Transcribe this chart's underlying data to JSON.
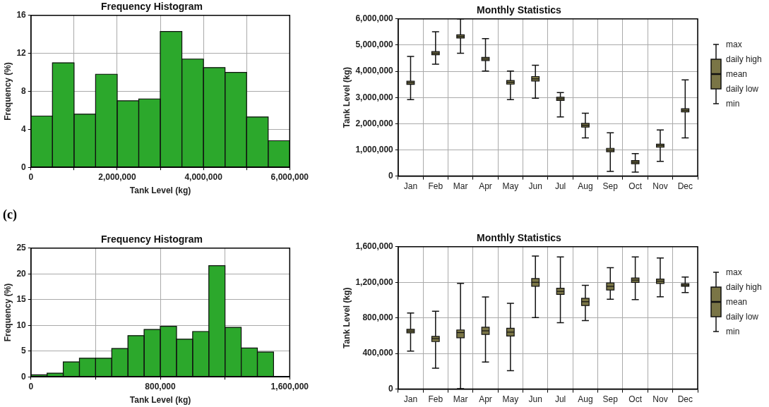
{
  "chart_data": [
    {
      "type": "histogram",
      "title": "Frequency Histogram",
      "xlabel": "Tank Level (kg)",
      "ylabel": "Frequency (%)",
      "color": "#2ca82c",
      "bins": [
        0,
        500000,
        1000000,
        1500000,
        2000000,
        2500000,
        3000000,
        3500000,
        4000000,
        4500000,
        5000000,
        5500000,
        6000000
      ],
      "values": [
        5.4,
        11.0,
        5.6,
        9.8,
        7.0,
        7.2,
        14.3,
        11.4,
        10.5,
        10.0,
        5.3,
        2.8
      ],
      "xlim": [
        0,
        6000000
      ],
      "xticks": [
        0,
        {
          "value": 1000000,
          "label": null
        },
        {
          "value": 2000000,
          "label": "2,000,000"
        },
        {
          "value": 3000000,
          "label": null
        },
        {
          "value": 4000000,
          "label": "4,000,000"
        },
        {
          "value": 5000000,
          "label": null
        },
        {
          "value": 6000000,
          "label": "6,000,000"
        }
      ],
      "ylim": [
        0,
        16
      ],
      "yticks": [
        0,
        4,
        8,
        12,
        16
      ],
      "grid": true
    },
    {
      "type": "box",
      "title": "Monthly Statistics",
      "ylabel": "Tank Level (kg)",
      "color": "#7a7546",
      "categories": [
        "Jan",
        "Feb",
        "Mar",
        "Apr",
        "May",
        "Jun",
        "Jul",
        "Aug",
        "Sep",
        "Oct",
        "Nov",
        "Dec"
      ],
      "boxes": [
        {
          "low": 2920000,
          "q1": 3500000,
          "median": 3560000,
          "q3": 3620000,
          "high": 4570000
        },
        {
          "low": 4270000,
          "q1": 4630000,
          "median": 4690000,
          "q3": 4750000,
          "high": 5510000
        },
        {
          "low": 4690000,
          "q1": 5270000,
          "median": 5330000,
          "q3": 5390000,
          "high": 6000000
        },
        {
          "low": 4010000,
          "q1": 4410000,
          "median": 4470000,
          "q3": 4530000,
          "high": 5250000
        },
        {
          "low": 2920000,
          "q1": 3510000,
          "median": 3580000,
          "q3": 3650000,
          "high": 4010000
        },
        {
          "low": 2970000,
          "q1": 3630000,
          "median": 3710000,
          "q3": 3800000,
          "high": 4230000
        },
        {
          "low": 2260000,
          "q1": 2890000,
          "median": 2950000,
          "q3": 3010000,
          "high": 3190000
        },
        {
          "low": 1460000,
          "q1": 1870000,
          "median": 1940000,
          "q3": 2010000,
          "high": 2400000
        },
        {
          "low": 180000,
          "q1": 930000,
          "median": 990000,
          "q3": 1060000,
          "high": 1650000
        },
        {
          "low": 150000,
          "q1": 470000,
          "median": 530000,
          "q3": 590000,
          "high": 860000
        },
        {
          "low": 560000,
          "q1": 1100000,
          "median": 1160000,
          "q3": 1220000,
          "high": 1760000
        },
        {
          "low": 1460000,
          "q1": 2450000,
          "median": 2510000,
          "q3": 2570000,
          "high": 3670000
        }
      ],
      "ylim": [
        0,
        6000000
      ],
      "yticks": [
        0,
        {
          "value": 1000000,
          "label": "1,000,000"
        },
        {
          "value": 2000000,
          "label": "2,000,000"
        },
        {
          "value": 3000000,
          "label": "3,000,000"
        },
        {
          "value": 4000000,
          "label": "4,000,000"
        },
        {
          "value": 5000000,
          "label": "5,000,000"
        },
        {
          "value": 6000000,
          "label": "6,000,000"
        }
      ],
      "grid": true,
      "annotations": [
        "max",
        "daily high",
        "mean",
        "daily low",
        "min"
      ]
    },
    {
      "type": "histogram",
      "title": "Frequency Histogram",
      "xlabel": "Tank Level (kg)",
      "ylabel": "Frequency (%)",
      "color": "#2ca82c",
      "bins": [
        0,
        100000,
        200000,
        300000,
        400000,
        500000,
        600000,
        700000,
        800000,
        900000,
        1000000,
        1100000,
        1200000,
        1300000,
        1400000,
        1500000
      ],
      "values": [
        0.4,
        0.7,
        2.9,
        3.6,
        3.6,
        5.5,
        8.0,
        9.2,
        9.8,
        7.3,
        8.8,
        21.6,
        9.6,
        5.6,
        4.8
      ],
      "xlim": [
        0,
        1600000
      ],
      "xticks": [
        0,
        {
          "value": 400000,
          "label": null
        },
        {
          "value": 800000,
          "label": "800,000"
        },
        {
          "value": 1200000,
          "label": null
        },
        {
          "value": 1600000,
          "label": "1,600,000"
        }
      ],
      "ylim": [
        0,
        25
      ],
      "yticks": [
        0,
        5,
        10,
        15,
        20,
        25
      ],
      "grid": true,
      "annotations": [
        "(c)"
      ]
    },
    {
      "type": "box",
      "title": "Monthly Statistics",
      "ylabel": "Tank Level (kg)",
      "color": "#7a7546",
      "categories": [
        "Jan",
        "Feb",
        "Mar",
        "Apr",
        "May",
        "Jun",
        "Jul",
        "Aug",
        "Sep",
        "Oct",
        "Nov",
        "Dec"
      ],
      "boxes": [
        {
          "low": 426000,
          "q1": 632000,
          "median": 652000,
          "q3": 672000,
          "high": 856000
        },
        {
          "low": 234000,
          "q1": 534000,
          "median": 567000,
          "q3": 592000,
          "high": 874000
        },
        {
          "low": 5000,
          "q1": 577000,
          "median": 635000,
          "q3": 665000,
          "high": 1189000
        },
        {
          "low": 305000,
          "q1": 615000,
          "median": 655000,
          "q3": 695000,
          "high": 1035000
        },
        {
          "low": 207000,
          "q1": 597000,
          "median": 640000,
          "q3": 683000,
          "high": 965000
        },
        {
          "low": 804000,
          "q1": 1156000,
          "median": 1200000,
          "q3": 1242000,
          "high": 1496000
        },
        {
          "low": 746000,
          "q1": 1065000,
          "median": 1098000,
          "q3": 1134000,
          "high": 1486000
        },
        {
          "low": 769000,
          "q1": 939000,
          "median": 982000,
          "q3": 1020000,
          "high": 1167000
        },
        {
          "low": 1009000,
          "q1": 1114000,
          "median": 1155000,
          "q3": 1193000,
          "high": 1365000
        },
        {
          "low": 1006000,
          "q1": 1199000,
          "median": 1225000,
          "q3": 1249000,
          "high": 1485000
        },
        {
          "low": 1038000,
          "q1": 1187000,
          "median": 1213000,
          "q3": 1237000,
          "high": 1474000
        },
        {
          "low": 1085000,
          "q1": 1155000,
          "median": 1170000,
          "q3": 1185000,
          "high": 1260000
        }
      ],
      "ylim": [
        0,
        1600000
      ],
      "yticks": [
        0,
        {
          "value": 400000,
          "label": "400,000"
        },
        {
          "value": 800000,
          "label": "800,000"
        },
        {
          "value": 1200000,
          "label": "1,200,000"
        },
        {
          "value": 1600000,
          "label": "1,600,000"
        }
      ],
      "grid": true,
      "annotations": [
        "max",
        "daily high",
        "mean",
        "daily low",
        "min"
      ]
    }
  ]
}
